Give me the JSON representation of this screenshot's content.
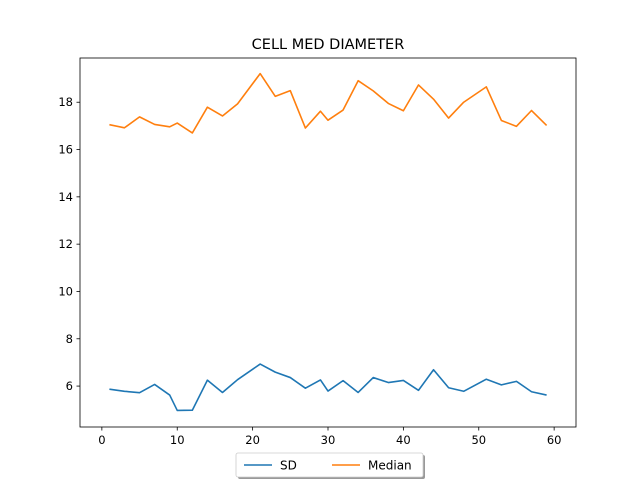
{
  "chart_data": {
    "type": "line",
    "title": "CELL MED DIAMETER",
    "xlabel": "",
    "ylabel": "",
    "xlim": [
      -2.9,
      62.9
    ],
    "ylim": [
      4.27,
      19.87
    ],
    "xticks": [
      0,
      10,
      20,
      30,
      40,
      50,
      60
    ],
    "yticks": [
      6,
      8,
      10,
      12,
      14,
      16,
      18
    ],
    "grid": false,
    "legend_placement": "bottom-center",
    "x": [
      1,
      3,
      5,
      7,
      9,
      10,
      12,
      14,
      16,
      18,
      21,
      23,
      25,
      27,
      29,
      30,
      32,
      34,
      36,
      38,
      40,
      42,
      44,
      46,
      48,
      51,
      53,
      55,
      57,
      59
    ],
    "series": [
      {
        "name": "SD",
        "color": "#1f77b4",
        "values": [
          5.87,
          5.78,
          5.72,
          6.07,
          5.62,
          4.97,
          4.98,
          6.25,
          5.73,
          6.27,
          6.93,
          6.59,
          6.36,
          5.91,
          6.26,
          5.79,
          6.23,
          5.73,
          6.36,
          6.15,
          6.24,
          5.82,
          6.69,
          5.93,
          5.78,
          6.29,
          6.05,
          6.2,
          5.76,
          5.62
        ]
      },
      {
        "name": "Median",
        "color": "#ff7f0e",
        "values": [
          17.05,
          16.92,
          17.38,
          17.06,
          16.96,
          17.12,
          16.7,
          17.79,
          17.42,
          17.93,
          19.21,
          18.25,
          18.49,
          16.91,
          17.62,
          17.24,
          17.67,
          18.91,
          18.48,
          17.95,
          17.64,
          18.73,
          18.13,
          17.33,
          18.0,
          18.65,
          17.23,
          16.98,
          17.65,
          17.02
        ]
      }
    ]
  }
}
